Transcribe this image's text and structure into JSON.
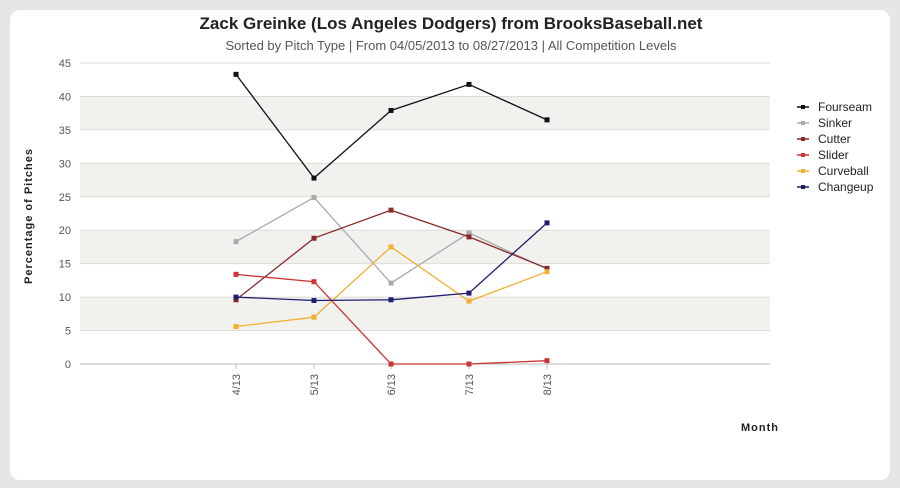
{
  "chart_data": {
    "type": "line",
    "title": "Zack Greinke (Los Angeles Dodgers) from BrooksBaseball.net",
    "subtitle": "Sorted by Pitch Type | From 04/05/2013 to 08/27/2013 | All Competition Levels",
    "xlabel": "Month",
    "ylabel": "Percentage of Pitches",
    "ylim": [
      0,
      45
    ],
    "yticks": [
      "0",
      "5",
      "10",
      "15",
      "20",
      "25",
      "30",
      "35",
      "40",
      "45"
    ],
    "categories": [
      "4/13",
      "5/13",
      "6/13",
      "7/13",
      "8/13"
    ],
    "legend_position": "right",
    "series": [
      {
        "name": "Fourseam",
        "color": "#111111",
        "values": [
          43.3,
          27.8,
          37.9,
          41.8,
          36.5
        ]
      },
      {
        "name": "Sinker",
        "color": "#aaaaaa",
        "values": [
          18.3,
          24.9,
          12.1,
          19.6,
          14.2
        ]
      },
      {
        "name": "Cutter",
        "color": "#8b2a2a",
        "values": [
          9.6,
          18.8,
          23.0,
          19.0,
          14.3
        ]
      },
      {
        "name": "Slider",
        "color": "#cc3333",
        "values": [
          13.4,
          12.3,
          0,
          0,
          0.5
        ]
      },
      {
        "name": "Curveball",
        "color": "#f0b030",
        "values": [
          5.6,
          7.0,
          17.5,
          9.4,
          13.8
        ]
      },
      {
        "name": "Changeup",
        "color": "#1e1e70",
        "values": [
          10.0,
          9.5,
          9.6,
          10.6,
          21.1
        ]
      }
    ]
  }
}
